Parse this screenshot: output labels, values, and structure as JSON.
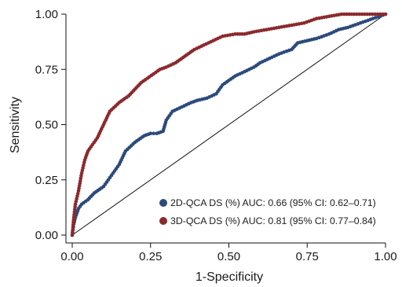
{
  "chart_data": {
    "type": "line",
    "xlabel": "1-Specificity",
    "ylabel": "Sensitivity",
    "xlim": [
      0,
      1
    ],
    "ylim": [
      0,
      1
    ],
    "xticks": [
      "0.00",
      "0.25",
      "0.50",
      "0.75",
      "1.00"
    ],
    "yticks": [
      "0.00",
      "0.25",
      "0.50",
      "0.75",
      "1.00"
    ],
    "grid": false,
    "legend_position": "bottom-right",
    "reference_line": {
      "x": [
        0,
        1
      ],
      "y": [
        0,
        1
      ]
    },
    "series": [
      {
        "name": "2D-QCA DS (%) AUC: 0.66 (95% CI: 0.62–0.71)",
        "color": "#2c4a7c",
        "x": [
          0,
          0.005,
          0.01,
          0.02,
          0.03,
          0.05,
          0.07,
          0.1,
          0.12,
          0.15,
          0.17,
          0.2,
          0.23,
          0.25,
          0.27,
          0.29,
          0.3,
          0.32,
          0.35,
          0.38,
          0.4,
          0.43,
          0.46,
          0.48,
          0.5,
          0.52,
          0.55,
          0.58,
          0.6,
          0.63,
          0.66,
          0.7,
          0.72,
          0.75,
          0.78,
          0.82,
          0.85,
          0.88,
          0.92,
          0.96,
          1.0
        ],
        "y": [
          0,
          0.05,
          0.08,
          0.12,
          0.14,
          0.16,
          0.19,
          0.22,
          0.26,
          0.32,
          0.38,
          0.42,
          0.45,
          0.46,
          0.46,
          0.47,
          0.52,
          0.56,
          0.58,
          0.6,
          0.61,
          0.62,
          0.64,
          0.68,
          0.7,
          0.72,
          0.74,
          0.76,
          0.78,
          0.8,
          0.82,
          0.84,
          0.87,
          0.88,
          0.89,
          0.91,
          0.93,
          0.94,
          0.96,
          0.98,
          1.0
        ]
      },
      {
        "name": "3D-QCA DS (%) AUC: 0.81 (95% CI: 0.77–0.84)",
        "color": "#8b2a2e",
        "x": [
          0,
          0.005,
          0.01,
          0.02,
          0.03,
          0.04,
          0.05,
          0.06,
          0.08,
          0.1,
          0.12,
          0.15,
          0.18,
          0.2,
          0.22,
          0.24,
          0.26,
          0.28,
          0.3,
          0.33,
          0.36,
          0.39,
          0.42,
          0.45,
          0.48,
          0.52,
          0.55,
          0.58,
          0.62,
          0.66,
          0.7,
          0.74,
          0.78,
          0.82,
          0.86,
          0.9,
          0.95,
          1.0
        ],
        "y": [
          0,
          0.08,
          0.14,
          0.2,
          0.28,
          0.34,
          0.38,
          0.4,
          0.44,
          0.5,
          0.56,
          0.6,
          0.63,
          0.66,
          0.69,
          0.71,
          0.73,
          0.75,
          0.76,
          0.78,
          0.81,
          0.84,
          0.86,
          0.88,
          0.9,
          0.91,
          0.91,
          0.92,
          0.93,
          0.94,
          0.95,
          0.96,
          0.98,
          0.99,
          1.0,
          1.0,
          1.0,
          1.0
        ]
      }
    ]
  }
}
